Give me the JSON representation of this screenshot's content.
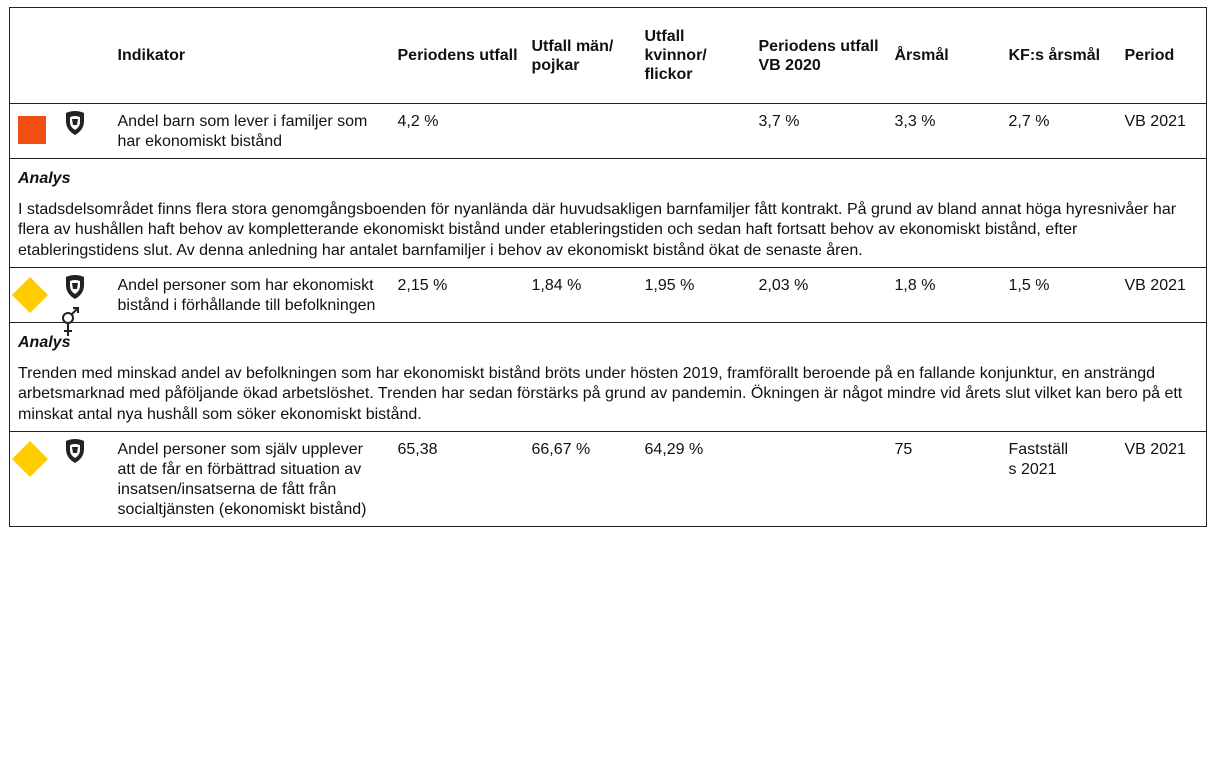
{
  "table": {
    "columns": [
      "Indikator",
      "Periodens utfall",
      "Utfall män/ pojkar",
      "Utfall kvinnor/ flickor",
      "Periodens utfall VB 2020",
      "Årsmål",
      "KF:s årsmål",
      "Period"
    ],
    "rows": [
      {
        "status_color": "#f04e12",
        "gender": false,
        "indicator": "Andel barn som lever i familjer som har ekonomiskt bistånd",
        "values": [
          "4,2 %",
          null,
          null,
          "3,7 %",
          "3,3 %",
          "2,7 %",
          "VB 2021"
        ],
        "analysis_label": "Analys",
        "analysis": "I stadsdelsområdet finns flera stora genomgångsboenden för nyanlända där huvudsakligen barnfamiljer fått kontrakt. På grund av bland annat höga hyresnivåer har flera av hushållen haft behov av kompletterande ekonomiskt bistånd under etableringstiden och sedan haft fortsatt behov av ekonomiskt bistånd, efter etableringstidens slut. Av denna anledning har antalet barnfamiljer i behov av ekonomiskt bistånd ökat de senaste åren."
      },
      {
        "status_color": "#ffcc00",
        "gender": true,
        "indicator": "Andel personer som har ekonomiskt bistånd i förhållande till befolkningen",
        "values": [
          "2,15 %",
          "1,84 %",
          "1,95 %",
          "2,03 %",
          "1,8 %",
          "1,5 %",
          "VB 2021"
        ],
        "analysis_label": "Analys",
        "analysis": "Trenden med minskad andel av befolkningen som har ekonomiskt bistånd bröts under hösten 2019, framförallt beroende på en fallande konjunktur, en ansträngd arbetsmarknad med påföljande ökad arbetslöshet. Trenden har sedan förstärks på grund av pandemin. Ökningen är något mindre vid årets slut vilket kan bero på ett minskat antal nya hushåll som söker ekonomiskt bistånd."
      },
      {
        "status_color": "#ffcc00",
        "gender": false,
        "indicator": "Andel personer som själv upplever att de får en förbättrad situation av insatsen/insatserna de fått från socialtjänsten (ekonomiskt bistånd)",
        "values": [
          "65,38",
          "66,67 %",
          "64,29 %",
          null,
          "75",
          "Fastställs 2021",
          "VB 2021"
        ]
      }
    ]
  }
}
